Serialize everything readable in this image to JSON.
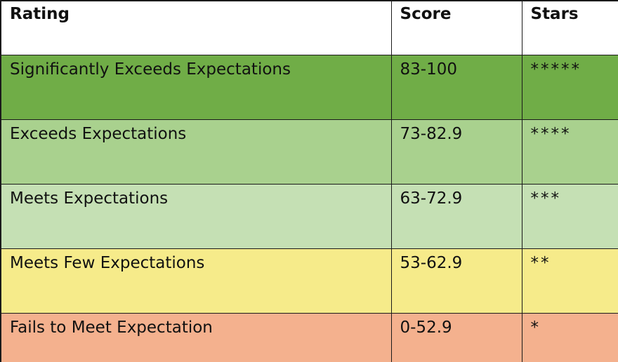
{
  "table": {
    "headers": [
      "Rating",
      "Score",
      "Stars"
    ],
    "rows": [
      {
        "rating": "Significantly Exceeds Expectations",
        "score": "83-100",
        "stars": "*****",
        "color": "#70ad47"
      },
      {
        "rating": "Exceeds Expectations",
        "score": "73-82.9",
        "stars": "****",
        "color": "#a9d18e"
      },
      {
        "rating": "Meets Expectations",
        "score": "63-72.9",
        "stars": "***",
        "color": "#c5e0b4"
      },
      {
        "rating": "Meets Few Expectations",
        "score": "53-62.9",
        "stars": "**",
        "color": "#f6eb8a"
      },
      {
        "rating": "Fails to Meet Expectation",
        "score": "0-52.9",
        "stars": "*",
        "color": "#f4b18e"
      }
    ]
  }
}
